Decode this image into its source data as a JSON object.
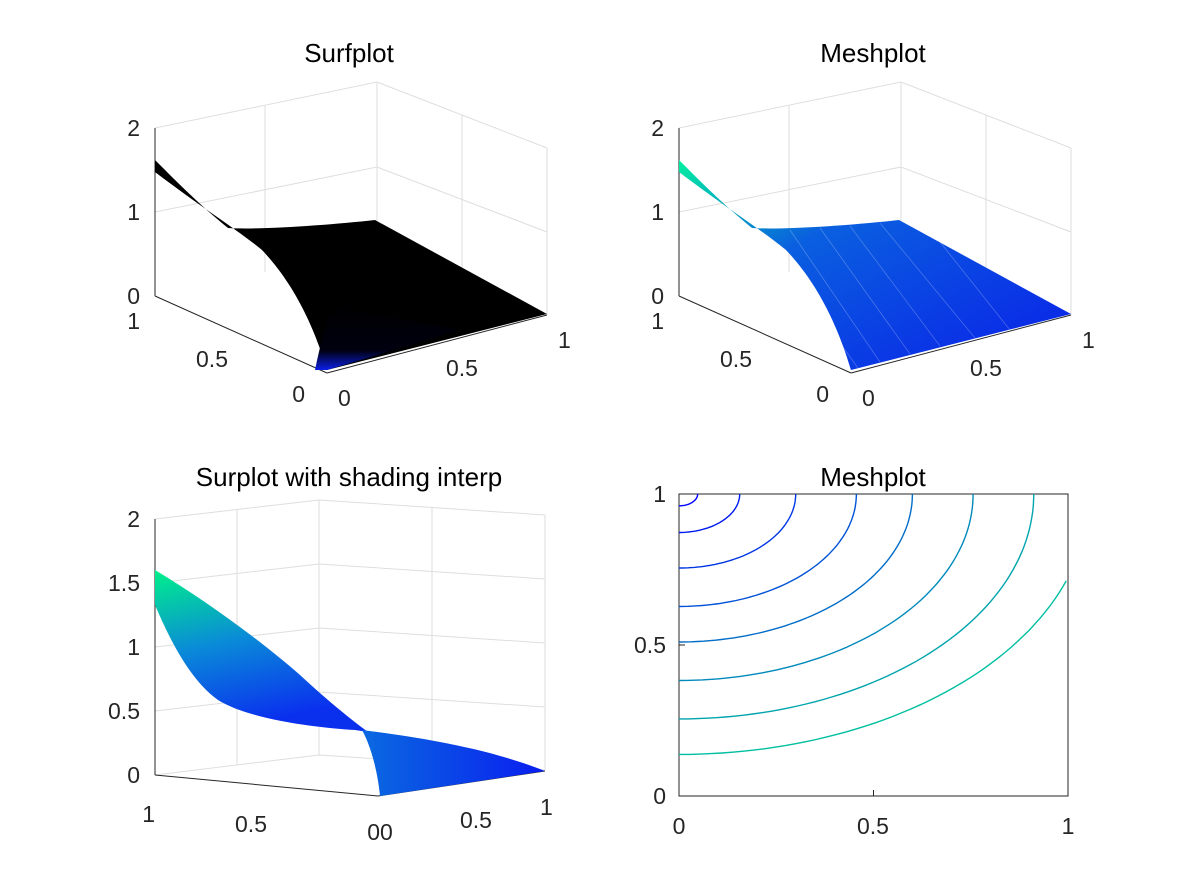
{
  "chart_data": [
    {
      "type": "surface",
      "title": "Surfplot",
      "surface_color": "#000000",
      "zlim": [
        0,
        2
      ],
      "xlim": [
        0,
        1
      ],
      "ylim": [
        0,
        1
      ],
      "z_ticks": [
        "0",
        "1",
        "2"
      ],
      "left_axis_ticks": [
        "0",
        "0.5",
        "1"
      ],
      "right_axis_ticks": [
        "0",
        "0.5",
        "1"
      ],
      "grid": "on"
    },
    {
      "type": "mesh",
      "title": "Meshplot",
      "colormap": [
        "#0000ff",
        "#00ff80"
      ],
      "zlim": [
        0,
        2
      ],
      "xlim": [
        0,
        1
      ],
      "ylim": [
        0,
        1
      ],
      "z_ticks": [
        "0",
        "1",
        "2"
      ],
      "left_axis_ticks": [
        "0",
        "0.5",
        "1"
      ],
      "right_axis_ticks": [
        "0",
        "0.5",
        "1"
      ],
      "grid": "on"
    },
    {
      "type": "surface",
      "title": "Surplot with shading interp",
      "colormap": [
        "#0000ff",
        "#00ff80"
      ],
      "zlim": [
        0,
        2
      ],
      "xlim": [
        0,
        1
      ],
      "ylim": [
        0,
        1
      ],
      "z_ticks": [
        "0",
        "0.5",
        "1",
        "1.5",
        "2"
      ],
      "left_axis_ticks": [
        "0",
        "0.5",
        "1"
      ],
      "right_axis_ticks": [
        "0",
        "0.5",
        "1"
      ],
      "grid": "on"
    },
    {
      "type": "contour",
      "title": "Meshplot",
      "xlim": [
        0,
        1
      ],
      "ylim": [
        0,
        1
      ],
      "x_ticks": [
        "0",
        "0.5",
        "1"
      ],
      "y_ticks": [
        "0",
        "0.5",
        "1"
      ],
      "colormap": [
        "#0000ff",
        "#00ff80"
      ],
      "levels": [
        0.04,
        0.13,
        0.25,
        0.38,
        0.5,
        0.63,
        0.76,
        0.88
      ],
      "grid": "off"
    }
  ]
}
